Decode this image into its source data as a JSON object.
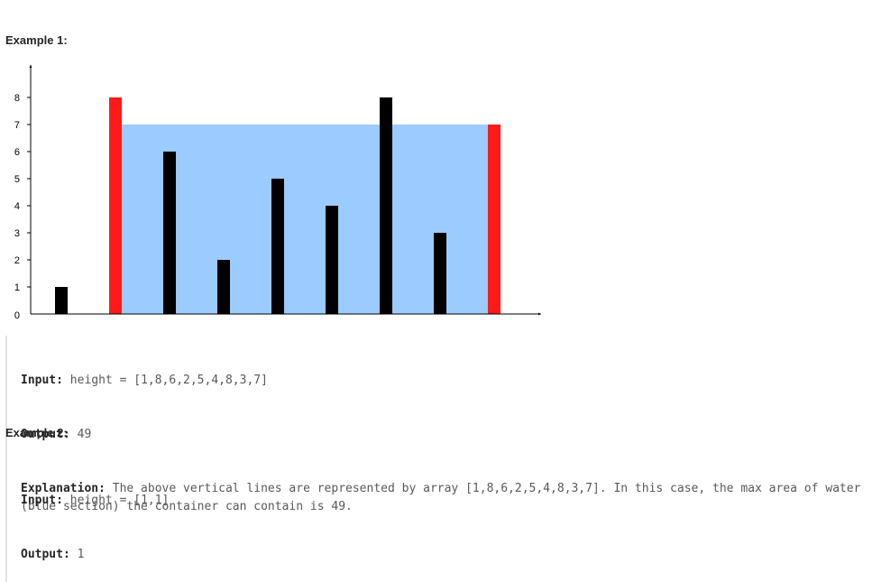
{
  "example1": {
    "heading": "Example 1:",
    "input_label": "Input:",
    "input_value": "height = [1,8,6,2,5,4,8,3,7]",
    "output_label": "Output:",
    "output_value": "49",
    "explanation_label": "Explanation:",
    "explanation_text": "The above vertical lines are represented by array [1,8,6,2,5,4,8,3,7]. In this case, the max area of water (blue section) the container can contain is 49."
  },
  "example2": {
    "heading": "Example 2:",
    "input_label": "Input:",
    "input_value": "height = [1,1]",
    "output_label": "Output:",
    "output_value": "1"
  },
  "chart_data": {
    "type": "bar",
    "values": [
      1,
      8,
      6,
      2,
      5,
      4,
      8,
      3,
      7
    ],
    "highlighted_indices": [
      1,
      8
    ],
    "water_level": 7,
    "y_ticks": [
      0,
      1,
      2,
      3,
      4,
      5,
      6,
      7,
      8
    ],
    "ylim": [
      0,
      8
    ],
    "colors": {
      "bar": "#000000",
      "highlight": "#ff1a1a",
      "water": "#9ccbff"
    }
  }
}
